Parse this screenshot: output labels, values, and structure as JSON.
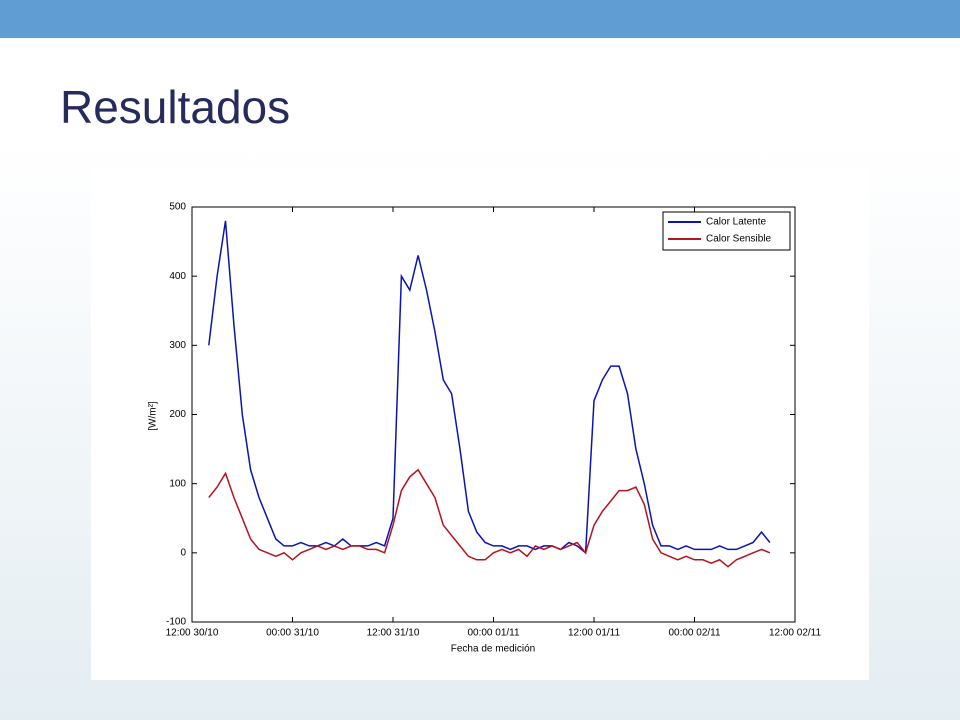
{
  "slide_title": "Resultados",
  "chart_data": {
    "type": "line",
    "ylabel": "[W/m²]",
    "xlabel": "Fecha de medición",
    "xlim": [
      "12:00 30/10",
      "12:00 02/11"
    ],
    "xticks": [
      "12:00 30/10",
      "00:00 31/10",
      "12:00 31/10",
      "00:00 01/11",
      "12:00 01/11",
      "00:00 02/11",
      "12:00 02/11"
    ],
    "ylim": [
      -100,
      500
    ],
    "yticks": [
      -100,
      0,
      100,
      200,
      300,
      400,
      500
    ],
    "grid": false,
    "legend": "upper right",
    "x": [
      "14:00 30/10",
      "15:00 30/10",
      "16:00 30/10",
      "17:00 30/10",
      "18:00 30/10",
      "19:00 30/10",
      "20:00 30/10",
      "21:00 30/10",
      "22:00 30/10",
      "23:00 30/10",
      "00:00 31/10",
      "01:00 31/10",
      "02:00 31/10",
      "03:00 31/10",
      "04:00 31/10",
      "05:00 31/10",
      "06:00 31/10",
      "07:00 31/10",
      "08:00 31/10",
      "09:00 31/10",
      "10:00 31/10",
      "11:00 31/10",
      "12:00 31/10",
      "13:00 31/10",
      "14:00 31/10",
      "15:00 31/10",
      "16:00 31/10",
      "17:00 31/10",
      "18:00 31/10",
      "19:00 31/10",
      "20:00 31/10",
      "21:00 31/10",
      "22:00 31/10",
      "23:00 31/10",
      "00:00 01/11",
      "01:00 01/11",
      "02:00 01/11",
      "03:00 01/11",
      "04:00 01/11",
      "05:00 01/11",
      "06:00 01/11",
      "07:00 01/11",
      "08:00 01/11",
      "09:00 01/11",
      "10:00 01/11",
      "11:00 01/11",
      "12:00 01/11",
      "13:00 01/11",
      "14:00 01/11",
      "15:00 01/11",
      "16:00 01/11",
      "17:00 01/11",
      "18:00 01/11",
      "19:00 01/11",
      "20:00 01/11",
      "21:00 01/11",
      "22:00 01/11",
      "23:00 01/11",
      "00:00 02/11",
      "01:00 02/11",
      "02:00 02/11",
      "03:00 02/11",
      "04:00 02/11",
      "05:00 02/11",
      "06:00 02/11",
      "07:00 02/11",
      "08:00 02/11",
      "09:00 02/11"
    ],
    "series": [
      {
        "name": "Calor Latente",
        "color": "#0a14b4",
        "values": [
          300,
          400,
          480,
          330,
          200,
          120,
          80,
          50,
          20,
          10,
          10,
          15,
          10,
          10,
          15,
          10,
          20,
          10,
          10,
          10,
          15,
          10,
          50,
          400,
          380,
          430,
          380,
          320,
          250,
          230,
          150,
          60,
          30,
          15,
          10,
          10,
          5,
          10,
          10,
          5,
          10,
          10,
          5,
          15,
          10,
          0,
          220,
          250,
          270,
          270,
          230,
          150,
          100,
          40,
          10,
          10,
          5,
          10,
          5,
          5,
          5,
          10,
          5,
          5,
          10,
          15,
          30,
          15
        ]
      },
      {
        "name": "Calor Sensible",
        "color": "#b4141e",
        "values": [
          80,
          95,
          115,
          80,
          50,
          20,
          5,
          0,
          -5,
          0,
          -10,
          0,
          5,
          10,
          5,
          10,
          5,
          10,
          10,
          5,
          5,
          0,
          40,
          90,
          110,
          120,
          100,
          80,
          40,
          25,
          10,
          -5,
          -10,
          -10,
          0,
          5,
          0,
          5,
          -5,
          10,
          5,
          10,
          5,
          10,
          15,
          0,
          40,
          60,
          75,
          90,
          90,
          95,
          70,
          20,
          0,
          -5,
          -10,
          -5,
          -10,
          -10,
          -15,
          -10,
          -20,
          -10,
          -5,
          0,
          5,
          0
        ]
      }
    ]
  }
}
